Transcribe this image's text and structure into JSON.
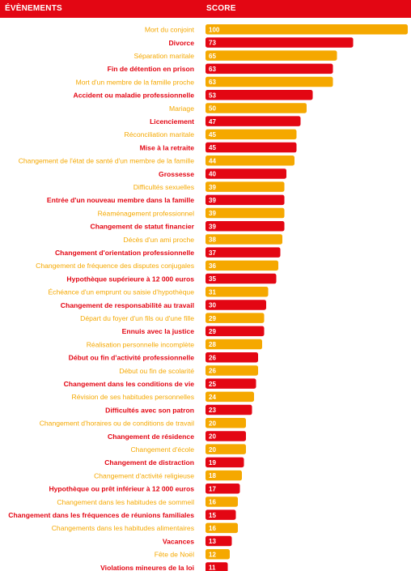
{
  "header": {
    "events_label": "ÉVÈNEMENTS",
    "score_label": "SCORE"
  },
  "colors": {
    "red": "#e30613",
    "orange": "#f5a800",
    "header_bg": "#e30613"
  },
  "chart_data": {
    "type": "bar",
    "orientation": "horizontal",
    "xlim": [
      0,
      100
    ],
    "categories": [
      "Mort du conjoint",
      "Divorce",
      "Séparation maritale",
      "Fin de détention en prison",
      "Mort d'un membre de la famille proche",
      "Accident ou maladie professionnelle",
      "Mariage",
      "Licenciement",
      "Réconciliation maritale",
      "Mise à la retraite",
      "Changement de l'état de santé d'un membre de la famille",
      "Grossesse",
      "Difficultés sexuelles",
      "Entrée d'un nouveau membre dans la famille",
      "Réaménagement professionnel",
      "Changement de statut financier",
      "Décès d'un ami proche",
      "Changement d'orientation professionnelle",
      "Changement de fréquence des disputes conjugales",
      "Hypothèque supérieure à 12 000 euros",
      "Échéance d'un emprunt ou saisie d'hypothèque",
      "Changement de responsabilité au travail",
      "Départ du foyer d'un fils ou d'une fille",
      "Ennuis avec la justice",
      "Réalisation personnelle incomplète",
      "Début ou fin d'activité professionnelle",
      "Début ou fin de scolarité",
      "Changement dans les conditions de vie",
      "Révision de ses habitudes personnelles",
      "Difficultés avec son patron",
      "Changement d'horaires ou de conditions de travail",
      "Changement de résidence",
      "Changement d'école",
      "Changement de distraction",
      "Changement d'activité religieuse",
      "Hypothèque ou prêt inférieur à 12 000 euros",
      "Changement dans les habitudes de sommeil",
      "Changement dans les fréquences de réunions familiales",
      "Changements dans les habitudes alimentaires",
      "Vacances",
      "Fête de Noël",
      "Violations mineures de la loi"
    ],
    "values": [
      100,
      73,
      65,
      63,
      63,
      53,
      50,
      47,
      45,
      45,
      44,
      40,
      39,
      39,
      39,
      39,
      38,
      37,
      36,
      35,
      31,
      30,
      29,
      29,
      28,
      26,
      26,
      25,
      24,
      23,
      20,
      20,
      20,
      19,
      18,
      17,
      16,
      15,
      16,
      13,
      12,
      11
    ],
    "colors": [
      "orange",
      "red",
      "orange",
      "red",
      "orange",
      "red",
      "orange",
      "red",
      "orange",
      "red",
      "orange",
      "red",
      "orange",
      "red",
      "orange",
      "red",
      "orange",
      "red",
      "orange",
      "red",
      "orange",
      "red",
      "orange",
      "red",
      "orange",
      "red",
      "orange",
      "red",
      "orange",
      "red",
      "orange",
      "red",
      "orange",
      "red",
      "orange",
      "red",
      "orange",
      "red",
      "orange",
      "red",
      "orange",
      "red"
    ]
  }
}
